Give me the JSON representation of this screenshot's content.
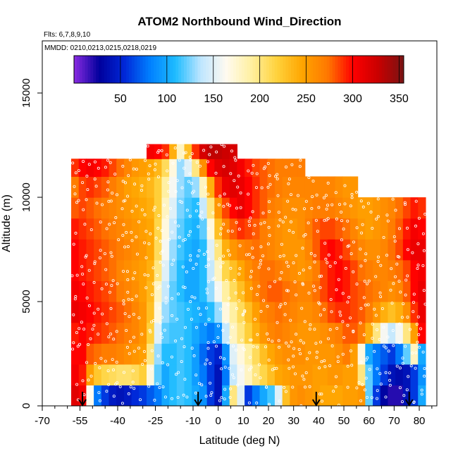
{
  "chart_data": {
    "type": "heatmap",
    "title": "ATOM2 Northbound Wind_Direction",
    "flights_label": "Flts: 6,7,8,9,10",
    "dates_label": "MMDD: 0210,0213,0215,0218,0219",
    "xlabel": "Latitude (deg N)",
    "ylabel": "Altitude (m)",
    "xlim": [
      -70,
      87
    ],
    "ylim": [
      0,
      17500
    ],
    "x_ticks": [
      -70,
      -55,
      -40,
      -25,
      -10,
      0,
      10,
      20,
      30,
      40,
      50,
      60,
      70,
      80
    ],
    "x_tick_labels": [
      "-70",
      "-55",
      "-40",
      "-25",
      "-10",
      "0",
      "10",
      "20",
      "30",
      "40",
      "50",
      "60",
      "70",
      "80"
    ],
    "x_minor_ticks": [
      -65,
      -60,
      -50,
      -45,
      -35,
      -30,
      -20,
      -15,
      -5,
      5,
      15,
      25,
      35,
      45,
      55,
      65,
      75,
      85
    ],
    "y_ticks": [
      0,
      5000,
      10000,
      15000
    ],
    "y_tick_labels": [
      "0",
      "5000",
      "10000",
      "15000"
    ],
    "colorbar": {
      "range": [
        0,
        355
      ],
      "ticks": [
        50,
        100,
        150,
        200,
        250,
        300,
        350
      ],
      "tick_labels": [
        "50",
        "100",
        "150",
        "200",
        "250",
        "300",
        "350"
      ],
      "colors": [
        "#8a2be2",
        "#00009c",
        "#0028d8",
        "#0080ff",
        "#1ebcff",
        "#bfe6ff",
        "#fffaf0",
        "#fff0a0",
        "#ffd23c",
        "#ffa500",
        "#ff7800",
        "#ff0000",
        "#c80000",
        "#781414"
      ]
    },
    "x_bins": [
      -57,
      -54,
      -51,
      -48,
      -45,
      -42,
      -39,
      -36,
      -33,
      -30,
      -27,
      -24,
      -21,
      -18,
      -15,
      -12,
      -9,
      -6,
      -3,
      0,
      3,
      6,
      9,
      12,
      15,
      18,
      21,
      24,
      27,
      30,
      33,
      36,
      39,
      42,
      45,
      48,
      51,
      54,
      57,
      60,
      63,
      66,
      69,
      72,
      75,
      78,
      81
    ],
    "altitude_bins_m": [
      500,
      1500,
      2500,
      3500,
      4500,
      5500,
      6500,
      7500,
      8500,
      9500,
      10500,
      11500,
      12200
    ],
    "wind_direction_deg": [
      [
        315,
        305,
        165,
        80,
        60,
        45,
        40,
        45,
        55,
        60,
        70,
        80,
        100,
        110,
        115,
        110,
        100,
        90,
        60,
        40,
        100,
        200,
        150,
        60,
        80,
        100,
        115,
        150,
        230,
        255,
        260,
        255,
        250,
        245,
        245,
        245,
        250,
        250,
        255,
        120,
        60,
        30,
        20,
        20,
        40,
        60,
        100
      ],
      [
        305,
        295,
        250,
        225,
        215,
        210,
        205,
        205,
        210,
        220,
        170,
        120,
        100,
        110,
        115,
        110,
        95,
        80,
        60,
        40,
        80,
        140,
        160,
        180,
        200,
        215,
        230,
        245,
        250,
        255,
        255,
        255,
        250,
        250,
        255,
        255,
        250,
        250,
        200,
        120,
        80,
        60,
        40,
        35,
        40,
        60,
        90
      ],
      [
        300,
        300,
        280,
        275,
        270,
        270,
        265,
        260,
        255,
        250,
        200,
        130,
        110,
        110,
        115,
        110,
        95,
        75,
        60,
        50,
        90,
        150,
        170,
        190,
        210,
        230,
        245,
        255,
        260,
        260,
        260,
        255,
        255,
        255,
        255,
        260,
        270,
        250,
        170,
        100,
        80,
        70,
        60,
        80,
        120,
        180,
        100
      ],
      [
        295,
        300,
        295,
        290,
        285,
        280,
        275,
        270,
        265,
        255,
        220,
        150,
        120,
        115,
        115,
        110,
        100,
        90,
        80,
        90,
        140,
        180,
        200,
        220,
        240,
        255,
        265,
        270,
        265,
        260,
        255,
        255,
        255,
        260,
        265,
        270,
        280,
        280,
        270,
        240,
        200,
        160,
        140,
        160,
        200,
        250,
        300
      ],
      [
        310,
        305,
        300,
        295,
        290,
        285,
        280,
        275,
        265,
        255,
        230,
        170,
        130,
        120,
        115,
        110,
        105,
        100,
        110,
        130,
        170,
        190,
        210,
        230,
        250,
        265,
        270,
        275,
        270,
        265,
        260,
        260,
        265,
        275,
        285,
        290,
        290,
        285,
        280,
        270,
        255,
        240,
        230,
        240,
        260,
        290,
        310
      ],
      [
        305,
        300,
        295,
        290,
        285,
        280,
        270,
        265,
        260,
        250,
        235,
        180,
        140,
        120,
        110,
        100,
        100,
        110,
        130,
        160,
        190,
        210,
        230,
        250,
        265,
        275,
        280,
        280,
        275,
        270,
        265,
        265,
        275,
        285,
        295,
        300,
        295,
        285,
        280,
        275,
        270,
        265,
        260,
        265,
        280,
        300,
        310
      ],
      [
        300,
        295,
        290,
        285,
        280,
        275,
        265,
        260,
        255,
        250,
        240,
        200,
        150,
        125,
        110,
        100,
        100,
        110,
        140,
        180,
        215,
        230,
        245,
        260,
        270,
        275,
        275,
        270,
        265,
        260,
        255,
        260,
        270,
        285,
        295,
        300,
        295,
        285,
        275,
        270,
        265,
        265,
        270,
        275,
        285,
        300,
        305
      ],
      [
        300,
        295,
        290,
        285,
        280,
        275,
        270,
        265,
        260,
        255,
        245,
        210,
        160,
        130,
        115,
        105,
        100,
        110,
        150,
        200,
        240,
        255,
        265,
        270,
        275,
        270,
        265,
        260,
        255,
        255,
        255,
        265,
        280,
        295,
        300,
        295,
        285,
        275,
        265,
        260,
        260,
        265,
        275,
        285,
        300,
        310,
        310
      ],
      [
        295,
        290,
        285,
        280,
        275,
        270,
        265,
        260,
        255,
        250,
        245,
        215,
        170,
        140,
        120,
        110,
        105,
        120,
        170,
        230,
        265,
        280,
        290,
        285,
        280,
        270,
        265,
        260,
        255,
        255,
        260,
        270,
        280,
        285,
        285,
        280,
        275,
        265,
        255,
        250,
        255,
        260,
        270,
        280,
        295,
        305,
        300
      ],
      [
        280,
        285,
        280,
        275,
        270,
        265,
        260,
        255,
        250,
        245,
        240,
        220,
        180,
        150,
        125,
        115,
        110,
        140,
        200,
        255,
        285,
        300,
        310,
        300,
        290,
        280,
        270,
        265,
        260,
        260,
        260,
        265,
        270,
        270,
        270,
        265,
        260,
        255,
        250,
        250,
        255,
        260,
        265,
        275,
        285,
        295,
        290
      ],
      [
        270,
        285,
        290,
        285,
        280,
        270,
        260,
        250,
        245,
        240,
        235,
        220,
        190,
        160,
        130,
        120,
        130,
        180,
        240,
        290,
        310,
        315,
        310,
        300,
        290,
        280,
        275,
        270,
        265,
        265,
        265,
        265,
        265,
        265,
        265,
        260,
        255,
        255,
        0,
        0,
        0,
        0,
        0,
        0,
        0,
        0,
        0
      ],
      [
        290,
        300,
        305,
        300,
        295,
        285,
        275,
        265,
        255,
        250,
        245,
        235,
        210,
        170,
        130,
        150,
        200,
        260,
        300,
        315,
        320,
        315,
        305,
        295,
        285,
        280,
        275,
        270,
        270,
        270,
        270,
        0,
        0,
        0,
        0,
        0,
        0,
        0,
        0,
        0,
        0,
        0,
        0,
        0,
        0,
        0,
        0
      ],
      [
        0,
        0,
        0,
        0,
        0,
        0,
        0,
        0,
        0,
        0,
        305,
        300,
        290,
        240,
        180,
        230,
        290,
        320,
        330,
        330,
        325,
        320,
        0,
        0,
        0,
        0,
        0,
        0,
        0,
        0,
        0,
        0,
        0,
        0,
        0,
        0,
        0,
        0,
        0,
        0,
        0,
        0,
        0,
        0,
        0,
        0,
        0
      ]
    ],
    "annotations": [
      {
        "type": "arrow",
        "label": "down-arrow",
        "latitude": -54
      },
      {
        "type": "arrow",
        "label": "down-arrow",
        "latitude": -8
      },
      {
        "type": "arrow",
        "label": "down-arrow",
        "latitude": 39
      },
      {
        "type": "arrow",
        "label": "down-arrow",
        "latitude": 76
      }
    ],
    "grid": false
  }
}
